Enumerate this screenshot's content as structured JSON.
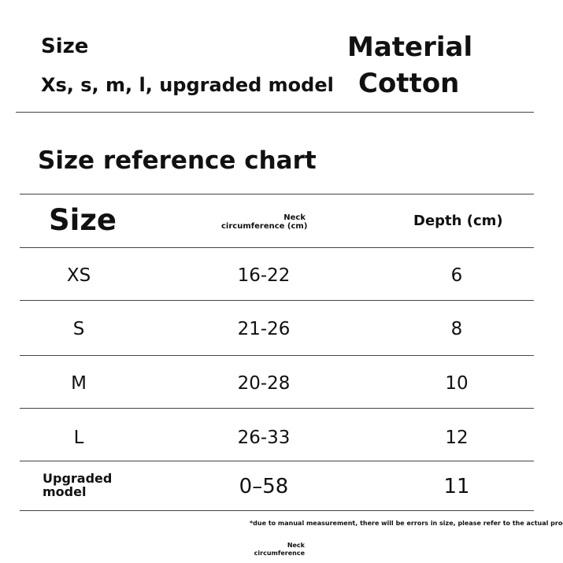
{
  "header": {
    "size_label": "Size",
    "size_value": "Xs, s, m, l, upgraded model",
    "material_label": "Material",
    "material_value": "Cotton"
  },
  "chart_title": "Size reference chart",
  "table": {
    "headers": [
      "Size",
      "Neck",
      "circumference (cm)",
      "Depth (cm)"
    ],
    "rows": [
      {
        "size": "XS",
        "neck": "16-22",
        "depth": "6"
      },
      {
        "size": "S",
        "neck": "21-26",
        "depth": "8"
      },
      {
        "size": "M",
        "neck": "20-28",
        "depth": "10"
      },
      {
        "size": "L",
        "neck": "26-33",
        "depth": "12"
      },
      {
        "size_line1": "Upgraded",
        "size_line2": "model",
        "neck": "0–58",
        "depth": "11"
      }
    ]
  },
  "footnote": "*due to manual measurement, there will be errors in size, please refer to the actual produ",
  "bottom_label": {
    "line1": "Neck",
    "line2": "circumference"
  }
}
